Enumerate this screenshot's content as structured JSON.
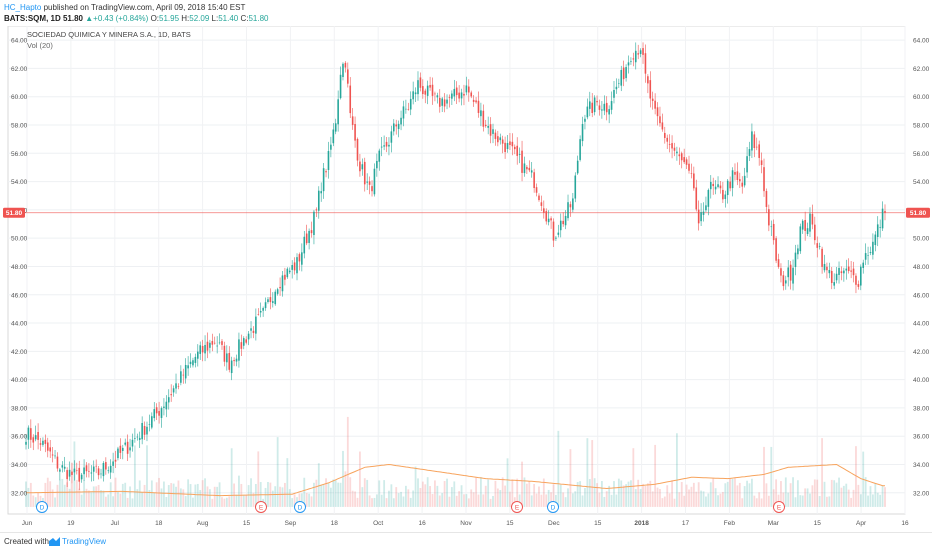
{
  "header": {
    "author": "HC_Hapto",
    "published": "published on TradingView.com, April 09, 2018 15:40 EST",
    "symbol": "BATS:SQM, 1D",
    "last": "51.80",
    "change": "▲+0.43 (+0.84%)",
    "o_label": "O:",
    "o_val": "51.95",
    "h_label": "H:",
    "h_val": "52.09",
    "l_label": "L:",
    "l_val": "51.40",
    "c_label": "C:",
    "c_val": "51.80"
  },
  "legend": {
    "title": "SOCIEDAD QUIMICA Y MINERA S.A., 1D, BATS",
    "volume": "Vol (20)"
  },
  "price_tag": "51.80",
  "footer": {
    "created": "Created with",
    "brand": "TradingView"
  },
  "colors": {
    "up": "#26a69a",
    "down": "#ef5350",
    "vol_ma": "#f7a35c",
    "price_line": "#ef5350"
  },
  "chart_data": {
    "type": "candlestick",
    "yticks": [
      "64.00",
      "62.00",
      "60.00",
      "58.00",
      "56.00",
      "54.00",
      "52.00",
      "50.00",
      "48.00",
      "46.00",
      "44.00",
      "42.00",
      "40.00",
      "38.00",
      "36.00",
      "34.00",
      "32.00"
    ],
    "ylim": [
      30.5,
      65
    ],
    "xticks": [
      "Jun",
      "19",
      "Jul",
      "18",
      "Aug",
      "15",
      "Sep",
      "18",
      "Oct",
      "16",
      "Nov",
      "15",
      "Dec",
      "15",
      "2018",
      "17",
      "Feb",
      "Mar",
      "15",
      "Apr",
      "16"
    ],
    "bold_tick": "2018",
    "last_price": 51.8,
    "event_markers": [
      {
        "label": "D",
        "kind": "dividend",
        "near": "19"
      },
      {
        "label": "E",
        "kind": "earnings",
        "near": "Aug 29"
      },
      {
        "label": "D",
        "kind": "dividend",
        "near": "Sep"
      },
      {
        "label": "E",
        "kind": "earnings",
        "near": "Nov 29"
      },
      {
        "label": "D",
        "kind": "dividend",
        "near": "Dec"
      },
      {
        "label": "E",
        "kind": "earnings",
        "near": "Mar"
      }
    ],
    "close_anchors": [
      [
        0,
        36.2
      ],
      [
        6,
        35.6
      ],
      [
        14,
        33.8
      ],
      [
        20,
        33.2
      ],
      [
        30,
        33.4
      ],
      [
        40,
        34.9
      ],
      [
        54,
        37.6
      ],
      [
        62,
        39.6
      ],
      [
        70,
        41.6
      ],
      [
        78,
        42.8
      ],
      [
        84,
        41.2
      ],
      [
        92,
        43.3
      ],
      [
        98,
        44.6
      ],
      [
        104,
        46.9
      ],
      [
        112,
        48.2
      ],
      [
        116,
        50.1
      ],
      [
        120,
        51.8
      ],
      [
        122,
        53.9
      ],
      [
        125,
        55.6
      ],
      [
        128,
        58.4
      ],
      [
        130,
        61.9
      ],
      [
        132,
        62.6
      ],
      [
        134,
        58.6
      ],
      [
        138,
        55.2
      ],
      [
        142,
        53.3
      ],
      [
        146,
        55.6
      ],
      [
        150,
        56.9
      ],
      [
        154,
        58.4
      ],
      [
        158,
        59.3
      ],
      [
        162,
        60.9
      ],
      [
        166,
        60.2
      ],
      [
        170,
        59.6
      ],
      [
        176,
        59.9
      ],
      [
        182,
        60.6
      ],
      [
        186,
        59.3
      ],
      [
        192,
        57.6
      ],
      [
        198,
        56.6
      ],
      [
        204,
        55.4
      ],
      [
        210,
        54.1
      ],
      [
        214,
        52.3
      ],
      [
        218,
        50.2
      ],
      [
        222,
        51.3
      ],
      [
        226,
        52.6
      ],
      [
        230,
        58.6
      ],
      [
        236,
        59.6
      ],
      [
        240,
        59.3
      ],
      [
        246,
        61.3
      ],
      [
        250,
        63.1
      ],
      [
        254,
        63.6
      ],
      [
        256,
        61.3
      ],
      [
        260,
        58.6
      ],
      [
        266,
        56.6
      ],
      [
        272,
        55.1
      ],
      [
        276,
        53.6
      ],
      [
        278,
        50.5
      ],
      [
        282,
        53.6
      ],
      [
        288,
        53.1
      ],
      [
        292,
        54.3
      ],
      [
        296,
        53.6
      ],
      [
        300,
        57.1
      ],
      [
        304,
        55.3
      ],
      [
        306,
        52.1
      ],
      [
        310,
        48.6
      ],
      [
        312,
        46.9
      ],
      [
        316,
        47.6
      ],
      [
        320,
        50.6
      ],
      [
        324,
        51.2
      ],
      [
        328,
        49.3
      ],
      [
        330,
        47.8
      ],
      [
        334,
        47.1
      ],
      [
        338,
        47.6
      ],
      [
        344,
        47.1
      ],
      [
        346,
        48.6
      ],
      [
        350,
        49.6
      ],
      [
        354,
        51.6
      ]
    ],
    "vol_ma_anchors": [
      [
        0,
        32.0
      ],
      [
        40,
        32.1
      ],
      [
        80,
        31.8
      ],
      [
        110,
        31.9
      ],
      [
        125,
        32.7
      ],
      [
        140,
        33.8
      ],
      [
        150,
        34.0
      ],
      [
        170,
        33.5
      ],
      [
        190,
        33.0
      ],
      [
        210,
        32.8
      ],
      [
        240,
        32.3
      ],
      [
        260,
        32.6
      ],
      [
        275,
        33.1
      ],
      [
        290,
        33.0
      ],
      [
        305,
        33.3
      ],
      [
        315,
        33.8
      ],
      [
        335,
        34.0
      ],
      [
        345,
        33.0
      ],
      [
        354,
        32.5
      ]
    ]
  }
}
